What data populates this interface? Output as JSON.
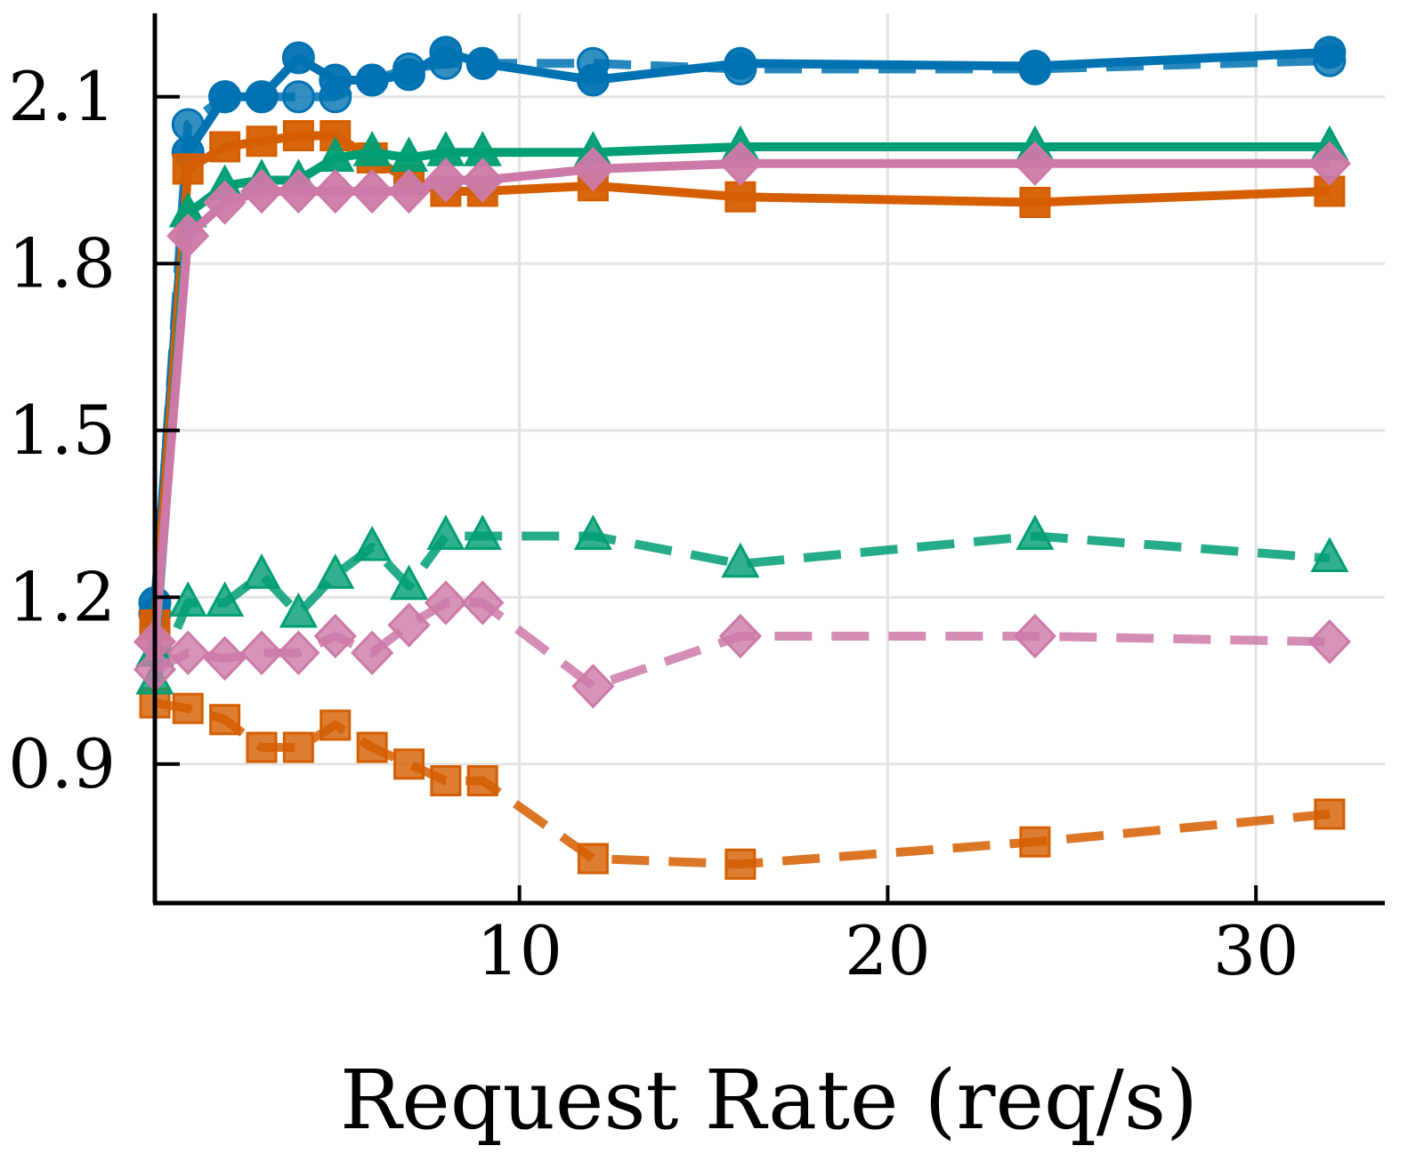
{
  "chart_data": {
    "type": "line",
    "title": "",
    "xlabel": "Request Rate (req/s)",
    "ylabel": "",
    "xlim": [
      0.1,
      33.5
    ],
    "ylim": [
      0.65,
      2.25
    ],
    "xticks": [
      10,
      20,
      30
    ],
    "yticks": [
      0.9,
      1.2,
      1.5,
      1.8,
      2.1
    ],
    "xtick_labels": [
      "10",
      "20",
      "30"
    ],
    "ytick_labels": [
      "0.9",
      "1.2",
      "1.5",
      "1.8",
      "2.1"
    ],
    "grid": true,
    "legend": "none",
    "series": [
      {
        "color": "#0072b2",
        "marker": "circle",
        "dash": "solid",
        "x": [
          0.1,
          1,
          2,
          3,
          4,
          5,
          6,
          7,
          8,
          9,
          12,
          16,
          24,
          32
        ],
        "y": [
          1.19,
          2.0,
          2.1,
          2.1,
          2.17,
          2.13,
          2.13,
          2.14,
          2.18,
          2.16,
          2.13,
          2.16,
          2.155,
          2.18
        ]
      },
      {
        "color": "#0072b2",
        "marker": "circle",
        "dash": "dashed",
        "x": [
          0.1,
          1,
          2,
          3,
          4,
          5,
          6,
          7,
          8,
          9,
          12,
          16,
          24,
          32
        ],
        "y": [
          1.17,
          2.05,
          2.1,
          2.1,
          2.1,
          2.1,
          2.13,
          2.15,
          2.16,
          2.16,
          2.16,
          2.15,
          2.15,
          2.165
        ]
      },
      {
        "color": "#d55e00",
        "marker": "square",
        "dash": "solid",
        "x": [
          0.1,
          1,
          2,
          3,
          4,
          5,
          6,
          7,
          8,
          9,
          12,
          16,
          24,
          32
        ],
        "y": [
          1.15,
          1.97,
          2.01,
          2.02,
          2.03,
          2.03,
          1.99,
          1.95,
          1.93,
          1.93,
          1.94,
          1.92,
          1.91,
          1.93
        ]
      },
      {
        "color": "#d55e00",
        "marker": "square",
        "dash": "dashed",
        "x": [
          0.1,
          1,
          2,
          3,
          4,
          5,
          6,
          7,
          8,
          9,
          12,
          16,
          24,
          32
        ],
        "y": [
          1.01,
          1.0,
          0.98,
          0.93,
          0.93,
          0.97,
          0.93,
          0.9,
          0.87,
          0.87,
          0.73,
          0.72,
          0.76,
          0.81
        ]
      },
      {
        "color": "#009e73",
        "marker": "triangle",
        "dash": "solid",
        "x": [
          0.1,
          1,
          2,
          3,
          4,
          5,
          6,
          7,
          8,
          9,
          12,
          16,
          24,
          32
        ],
        "y": [
          1.1,
          1.89,
          1.94,
          1.95,
          1.95,
          1.99,
          2.0,
          1.99,
          2.0,
          2.0,
          2.0,
          2.01,
          2.01,
          2.01
        ]
      },
      {
        "color": "#009e73",
        "marker": "triangle",
        "dash": "dashed",
        "x": [
          0.1,
          1,
          2,
          3,
          4,
          5,
          6,
          7,
          8,
          9,
          12,
          16,
          24,
          32
        ],
        "y": [
          1.05,
          1.19,
          1.19,
          1.24,
          1.17,
          1.24,
          1.29,
          1.22,
          1.31,
          1.31,
          1.31,
          1.26,
          1.31,
          1.27
        ]
      },
      {
        "color": "#cc79a7",
        "marker": "diamond",
        "dash": "solid",
        "x": [
          0.1,
          1,
          2,
          3,
          4,
          5,
          6,
          7,
          8,
          9,
          12,
          16,
          24,
          32
        ],
        "y": [
          1.12,
          1.85,
          1.91,
          1.93,
          1.93,
          1.93,
          1.93,
          1.93,
          1.95,
          1.95,
          1.97,
          1.98,
          1.98,
          1.98
        ]
      },
      {
        "color": "#cc79a7",
        "marker": "diamond",
        "dash": "dashed",
        "x": [
          0.1,
          1,
          2,
          3,
          4,
          5,
          6,
          7,
          8,
          9,
          12,
          16,
          24,
          32
        ],
        "y": [
          1.07,
          1.1,
          1.09,
          1.1,
          1.1,
          1.13,
          1.1,
          1.15,
          1.19,
          1.19,
          1.04,
          1.13,
          1.13,
          1.12
        ]
      }
    ]
  }
}
